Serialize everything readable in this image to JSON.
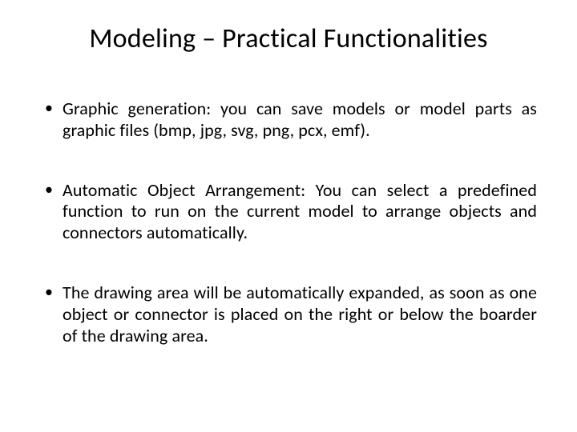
{
  "slide": {
    "title": "Modeling – Practical Functionalities",
    "bullets": [
      "Graphic generation: you can save models or model parts as graphic files (bmp, jpg, svg, png, pcx, emf).",
      "Automatic Object Arrangement: You can select a predefined function to run on the current model to arrange objects and connectors automatically.",
      "The drawing area will be automatically expanded, as soon as one object or connector is placed on the right or below the boarder of the drawing area."
    ]
  },
  "style": {
    "background_color": "#ffffff",
    "text_color": "#000000",
    "title_fontsize": 34,
    "body_fontsize": 22,
    "font_family": "Calibri"
  }
}
